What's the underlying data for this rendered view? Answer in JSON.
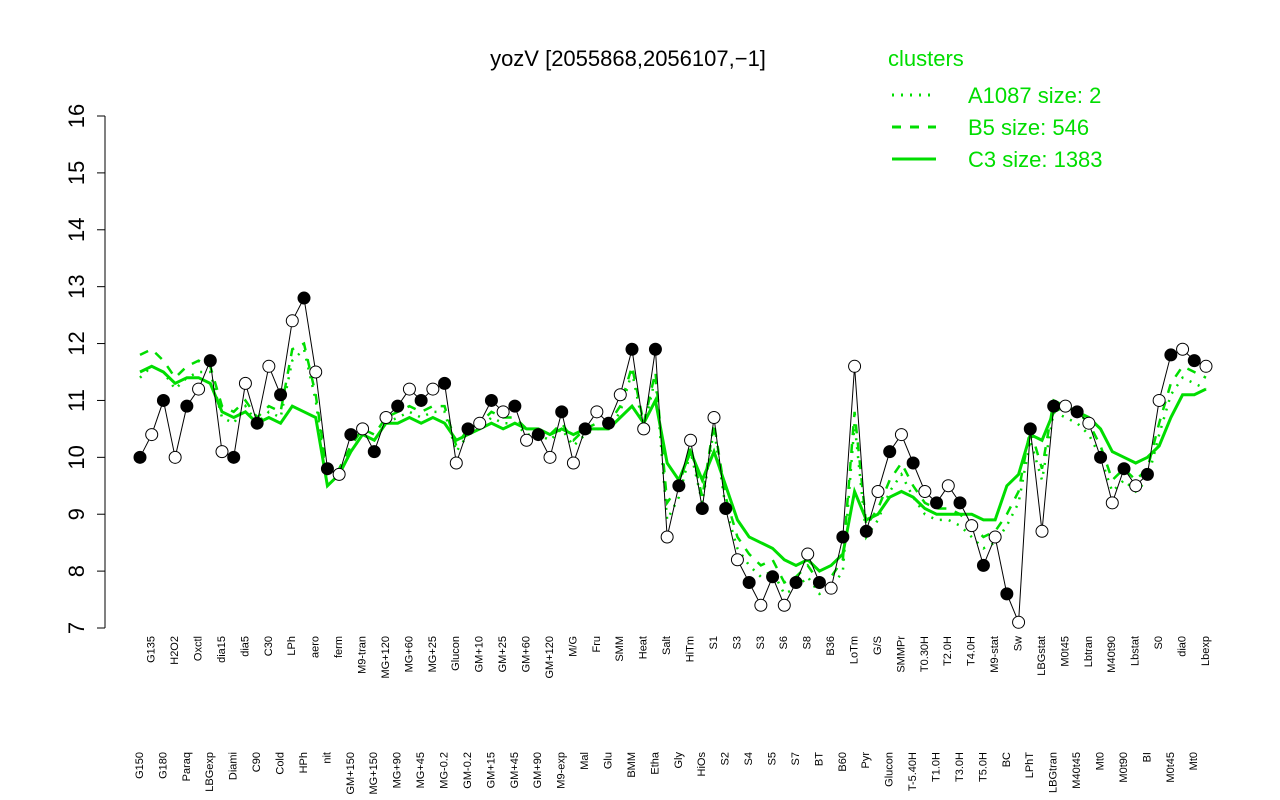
{
  "chart_data": {
    "type": "line",
    "title": "yozV [2055868,2056107,−1]",
    "legend_title": "clusters",
    "legend_position": "top-right",
    "ylim": [
      7,
      16
    ],
    "yticks": [
      7,
      8,
      9,
      10,
      11,
      12,
      13,
      14,
      15,
      16
    ],
    "categories": [
      "G150",
      "G135",
      "G180",
      "H2O2",
      "Paraq",
      "Oxctl",
      "LBGexp",
      "dia15",
      "Diami",
      "dia5",
      "C90",
      "C30",
      "Cold",
      "LPh",
      "HPh",
      "aero",
      "nit",
      "ferm",
      "GM+150",
      "M9-tran",
      "MG+150",
      "MG+120",
      "MG+90",
      "MG+60",
      "MG+45",
      "MG+25",
      "MG-0.2",
      "Glucon",
      "GM-0.2",
      "GM+10",
      "GM+15",
      "GM+25",
      "GM+45",
      "GM+60",
      "GM+90",
      "GM+120",
      "M9-exp",
      "M/G",
      "Mal",
      "Fru",
      "Glu",
      "SMM",
      "BMM",
      "Heat",
      "Etha",
      "Salt",
      "Gly",
      "HiTm",
      "HiOs",
      "S1",
      "S2",
      "S3",
      "S4",
      "S3",
      "S5",
      "S6",
      "S7",
      "S8",
      "BT",
      "B36",
      "B60",
      "LoTm",
      "Pyr",
      "G/S",
      "Glucon",
      "SMMPr",
      "T-5.40H",
      "T0.30H",
      "T1.0H",
      "T2.0H",
      "T3.0H",
      "T4.0H",
      "T5.0H",
      "M9-stat",
      "BC",
      "Sw",
      "LPhT",
      "LBGstat",
      "LBGtran",
      "M0t45",
      "M40t45",
      "Lbtran",
      "Mt0",
      "M40t90",
      "M0t90",
      "Lbstat",
      "BI",
      "S0",
      "M0t45",
      "dia0",
      "Mt0",
      "Lbexp"
    ],
    "values": [
      10.0,
      10.4,
      11.0,
      10.0,
      10.9,
      11.2,
      11.7,
      10.1,
      10.0,
      11.3,
      10.6,
      11.6,
      11.1,
      12.4,
      12.8,
      11.5,
      9.8,
      9.7,
      10.4,
      10.5,
      10.1,
      10.7,
      10.9,
      11.2,
      11.0,
      11.2,
      11.3,
      9.9,
      10.5,
      10.6,
      11.0,
      10.8,
      10.9,
      10.3,
      10.4,
      10.0,
      10.8,
      9.9,
      10.5,
      10.8,
      10.6,
      11.1,
      11.9,
      10.5,
      11.9,
      8.6,
      9.5,
      10.3,
      9.1,
      10.7,
      9.1,
      8.2,
      7.8,
      7.4,
      7.9,
      7.4,
      7.8,
      8.3,
      7.8,
      7.7,
      8.6,
      11.6,
      8.7,
      9.4,
      10.1,
      10.4,
      9.9,
      9.4,
      9.2,
      9.5,
      9.2,
      8.8,
      8.1,
      8.6,
      7.6,
      7.1,
      10.5,
      8.7,
      10.9,
      10.9,
      10.8,
      10.6,
      10.0,
      9.2,
      9.8,
      9.5,
      9.7,
      11.0,
      11.8,
      11.9,
      11.7,
      11.6
    ],
    "color": "#000000",
    "series": [
      {
        "name": "A1087 size: 2",
        "color": "#00dd00",
        "linestyle": "dotted",
        "values": [
          11.4,
          11.6,
          11.5,
          11.2,
          11.4,
          11.5,
          11.5,
          10.7,
          10.6,
          10.9,
          10.6,
          10.8,
          10.7,
          11.7,
          11.9,
          11.0,
          9.5,
          9.7,
          10.1,
          10.4,
          10.3,
          10.6,
          10.7,
          10.8,
          10.7,
          10.8,
          10.8,
          10.1,
          10.4,
          10.5,
          10.7,
          10.6,
          10.6,
          10.4,
          10.4,
          10.3,
          10.5,
          10.2,
          10.4,
          10.5,
          10.5,
          10.8,
          11.5,
          10.5,
          11.4,
          8.9,
          9.3,
          10.1,
          9.2,
          10.5,
          9.1,
          8.4,
          8.1,
          7.9,
          8.0,
          7.6,
          7.7,
          7.9,
          7.6,
          7.7,
          8.0,
          10.6,
          8.6,
          8.9,
          9.4,
          9.7,
          9.3,
          9.0,
          8.9,
          8.9,
          8.8,
          8.6,
          8.4,
          8.5,
          8.8,
          9.2,
          10.3,
          9.6,
          10.8,
          10.7,
          10.6,
          10.4,
          10.0,
          9.4,
          9.6,
          9.4,
          9.6,
          10.4,
          11.1,
          11.4,
          11.3,
          11.2
        ]
      },
      {
        "name": "B5 size: 546",
        "color": "#00dd00",
        "linestyle": "dashed",
        "values": [
          11.8,
          11.9,
          11.7,
          11.4,
          11.6,
          11.7,
          11.6,
          10.9,
          10.8,
          11.0,
          10.7,
          10.9,
          10.8,
          11.9,
          12.0,
          11.1,
          9.7,
          9.8,
          10.2,
          10.5,
          10.4,
          10.7,
          10.8,
          10.9,
          10.8,
          10.9,
          10.9,
          10.2,
          10.5,
          10.6,
          10.8,
          10.7,
          10.7,
          10.5,
          10.5,
          10.4,
          10.6,
          10.3,
          10.5,
          10.6,
          10.6,
          10.9,
          11.6,
          10.6,
          11.5,
          9.2,
          9.5,
          10.2,
          9.3,
          10.6,
          9.3,
          8.6,
          8.3,
          8.1,
          8.2,
          7.8,
          7.9,
          8.1,
          7.8,
          7.9,
          8.2,
          10.8,
          8.8,
          9.1,
          9.6,
          9.9,
          9.5,
          9.2,
          9.1,
          9.1,
          9.0,
          8.8,
          8.6,
          8.7,
          9.0,
          9.4,
          10.5,
          9.8,
          11.0,
          10.9,
          10.8,
          10.6,
          10.2,
          9.6,
          9.8,
          9.6,
          9.8,
          10.6,
          11.3,
          11.6,
          11.5,
          11.4
        ]
      },
      {
        "name": "C3 size: 1383",
        "color": "#00dd00",
        "linestyle": "solid",
        "values": [
          11.5,
          11.6,
          11.5,
          11.3,
          11.4,
          11.4,
          11.3,
          10.8,
          10.7,
          10.8,
          10.6,
          10.7,
          10.6,
          10.9,
          10.8,
          10.7,
          9.5,
          9.7,
          10.1,
          10.4,
          10.3,
          10.6,
          10.6,
          10.7,
          10.6,
          10.7,
          10.6,
          10.3,
          10.4,
          10.5,
          10.6,
          10.5,
          10.6,
          10.5,
          10.5,
          10.4,
          10.5,
          10.4,
          10.5,
          10.5,
          10.5,
          10.7,
          10.9,
          10.6,
          11.0,
          9.9,
          9.6,
          10.1,
          9.6,
          10.1,
          9.5,
          8.9,
          8.6,
          8.5,
          8.4,
          8.2,
          8.1,
          8.2,
          8.0,
          8.1,
          8.3,
          9.4,
          8.9,
          9.0,
          9.3,
          9.4,
          9.3,
          9.1,
          9.0,
          9.0,
          9.0,
          9.0,
          8.9,
          8.9,
          9.5,
          9.7,
          10.4,
          10.3,
          10.8,
          10.9,
          10.8,
          10.7,
          10.5,
          10.1,
          10.0,
          9.9,
          10.0,
          10.2,
          10.7,
          11.1,
          11.1,
          11.2
        ]
      }
    ]
  }
}
